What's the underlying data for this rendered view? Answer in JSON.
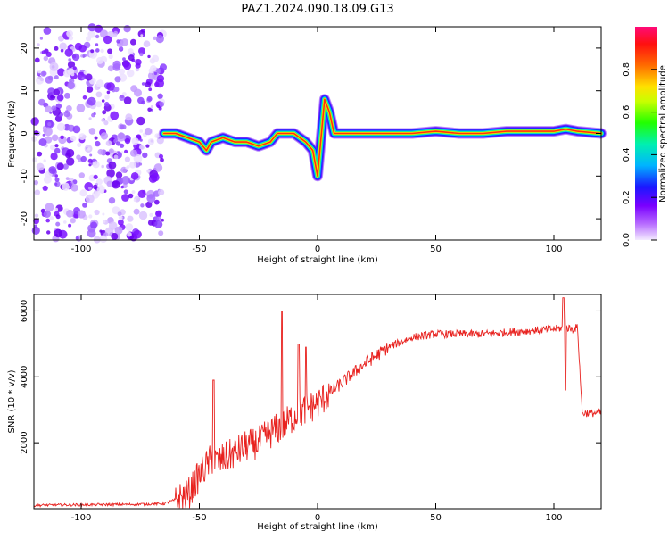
{
  "title": "PAZ1.2024.090.18.09.G13",
  "chart_data": [
    {
      "type": "heatmap",
      "xlabel": "Height of straight line (km)",
      "ylabel": "Frequency (Hz)",
      "xlim": [
        -120,
        120
      ],
      "ylim": [
        -25,
        25
      ],
      "xticks": [
        -100,
        -50,
        0,
        50,
        100
      ],
      "yticks": [
        -20,
        -10,
        0,
        10,
        20
      ],
      "noise_region_x": [
        -120,
        -65
      ],
      "frequency_track": {
        "x": [
          -65,
          -60,
          -55,
          -50,
          -47,
          -45,
          -40,
          -35,
          -30,
          -25,
          -20,
          -17,
          -15,
          -10,
          -5,
          -2,
          0,
          3,
          5,
          7,
          10,
          20,
          30,
          40,
          50,
          60,
          70,
          80,
          90,
          100,
          105,
          110,
          120
        ],
        "y": [
          0,
          0,
          -1,
          -2,
          -4,
          -2,
          -1,
          -2,
          -2,
          -3,
          -2,
          0,
          0,
          0,
          -2,
          -4,
          -10,
          8,
          5,
          0,
          0,
          0,
          0,
          0,
          0.5,
          0,
          0,
          0.5,
          0.5,
          0.5,
          1,
          0.5,
          0
        ]
      },
      "colorbar": {
        "label": "Normalized spectral amplitude",
        "ticks": [
          "0.0",
          "0.2",
          "0.4",
          "0.6",
          "0.8"
        ],
        "range": [
          0,
          1
        ]
      }
    },
    {
      "type": "line",
      "xlabel": "Height of straight line (km)",
      "ylabel": "SNR (10 * v/v)",
      "xlim": [
        -120,
        120
      ],
      "ylim": [
        0,
        6500
      ],
      "xticks": [
        -100,
        -50,
        0,
        50,
        100
      ],
      "yticks": [
        2000,
        4000,
        6000
      ],
      "color": "#e8221f",
      "x": [
        -120,
        -100,
        -80,
        -65,
        -55,
        -50,
        -48,
        -45,
        -42,
        -40,
        -35,
        -30,
        -25,
        -20,
        -15,
        -10,
        -5,
        0,
        10,
        20,
        30,
        40,
        50,
        60,
        70,
        80,
        90,
        100,
        105,
        108,
        110,
        112,
        120
      ],
      "y": [
        100,
        120,
        130,
        150,
        400,
        1000,
        1200,
        1500,
        1400,
        1500,
        1700,
        1900,
        2000,
        2300,
        2500,
        2800,
        3000,
        3200,
        3800,
        4400,
        4900,
        5200,
        5300,
        5300,
        5300,
        5350,
        5400,
        5450,
        5500,
        5450,
        5500,
        2900,
        2900
      ]
    }
  ]
}
